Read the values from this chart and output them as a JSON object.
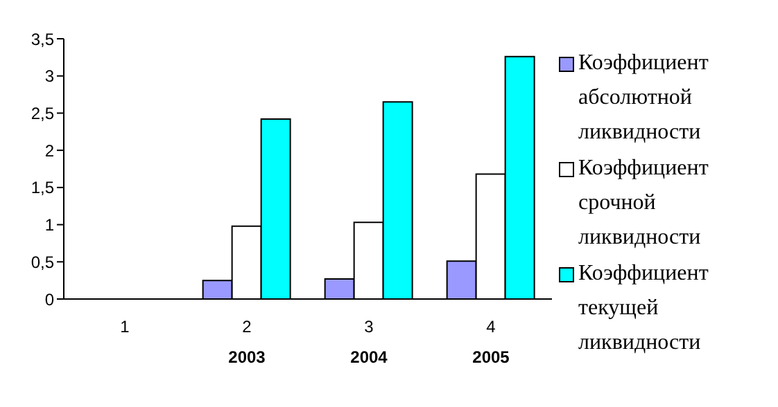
{
  "chart_data": {
    "type": "bar",
    "categories": [
      "1",
      "2\n2003",
      "3\n2004",
      "4\n2005"
    ],
    "series": [
      {
        "name": "Коэффициент абсолютной ликвидности",
        "color": "#9999ff",
        "values": [
          0,
          0.25,
          0.27,
          0.51
        ]
      },
      {
        "name": "Коэффициент срочной ликвидности",
        "color": "#ffffff",
        "values": [
          0,
          0.98,
          1.03,
          1.68
        ]
      },
      {
        "name": "Коэффициент текущей ликвидности",
        "color": "#00ffff",
        "values": [
          0,
          2.42,
          2.65,
          3.26
        ]
      }
    ],
    "ylim": [
      0,
      3.5
    ],
    "yticks": [
      0,
      {
        "value": 0.5,
        "label": "0,5"
      },
      1,
      {
        "value": 1.5,
        "label": "1,5"
      },
      2,
      {
        "value": 2.5,
        "label": "2,5"
      },
      3,
      {
        "value": 3.5,
        "label": "3,5"
      }
    ],
    "grid": false,
    "legend": "right"
  }
}
